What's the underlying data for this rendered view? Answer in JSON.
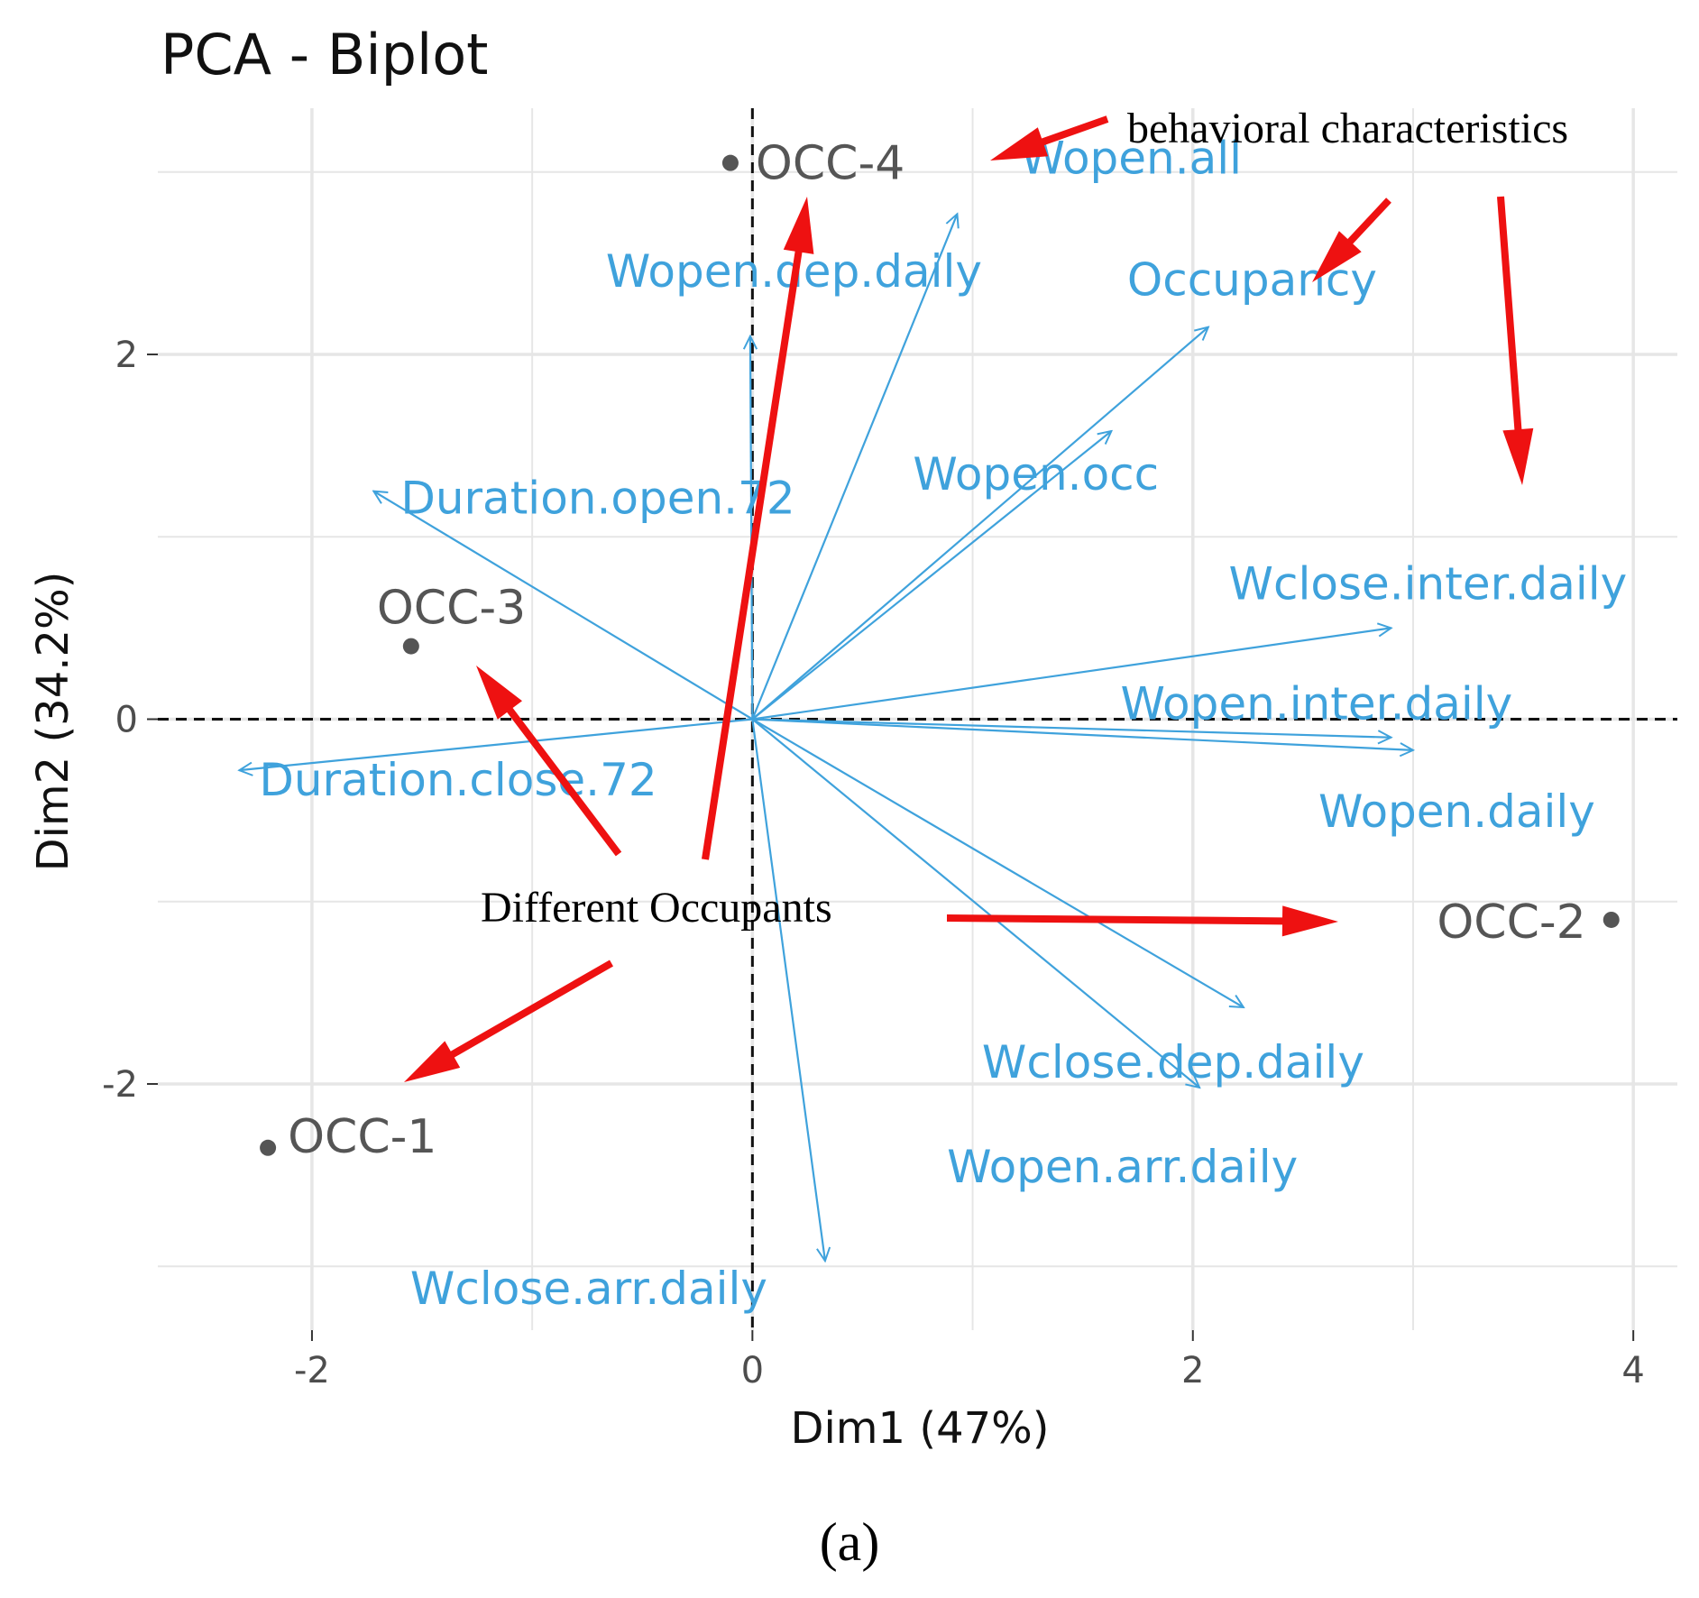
{
  "chart_data": {
    "type": "scatter",
    "subtype": "pca-biplot",
    "title": "PCA - Biplot",
    "xlabel": "Dim1 (47%)",
    "ylabel": "Dim2 (34.2%)",
    "xlim": [
      -2.7,
      4.2
    ],
    "ylim": [
      -3.35,
      3.35
    ],
    "xticks": [
      -2,
      0,
      2,
      4
    ],
    "yticks": [
      -2,
      0,
      2
    ],
    "grid": true,
    "individuals": [
      {
        "name": "OCC-4",
        "x": -0.1,
        "y": 3.05
      },
      {
        "name": "OCC-3",
        "x": -1.55,
        "y": 0.4
      },
      {
        "name": "OCC-1",
        "x": -2.2,
        "y": -2.35
      },
      {
        "name": "OCC-2",
        "x": 3.9,
        "y": -1.1
      }
    ],
    "variables": [
      {
        "name": "Wopen.all",
        "x": 0.93,
        "y": 2.77
      },
      {
        "name": "Wopen.dep.daily",
        "x": -0.01,
        "y": 2.1
      },
      {
        "name": "Occupancy",
        "x": 2.07,
        "y": 2.15
      },
      {
        "name": "Wopen.occ",
        "x": 1.63,
        "y": 1.58
      },
      {
        "name": "Duration.open.72",
        "x": -1.72,
        "y": 1.25
      },
      {
        "name": "Wclose.inter.daily",
        "x": 2.9,
        "y": 0.5
      },
      {
        "name": "Wopen.inter.daily",
        "x": 2.9,
        "y": -0.1
      },
      {
        "name": "Wopen.daily",
        "x": 3.0,
        "y": -0.17
      },
      {
        "name": "Duration.close.72",
        "x": -2.33,
        "y": -0.28
      },
      {
        "name": "Wclose.dep.daily",
        "x": 2.23,
        "y": -1.58
      },
      {
        "name": "Wopen.arr.daily",
        "x": 2.03,
        "y": -2.02
      },
      {
        "name": "Wclose.arr.daily",
        "x": 0.33,
        "y": -2.97
      }
    ],
    "annotations": [
      "behavioral characteristics",
      "Different Occupants"
    ],
    "panel_label": "(a)"
  },
  "colors": {
    "variable": "#3fa2dc",
    "individual": "#555555",
    "annotation_arrow": "#ee1111",
    "grid": "#e6e6e6"
  }
}
